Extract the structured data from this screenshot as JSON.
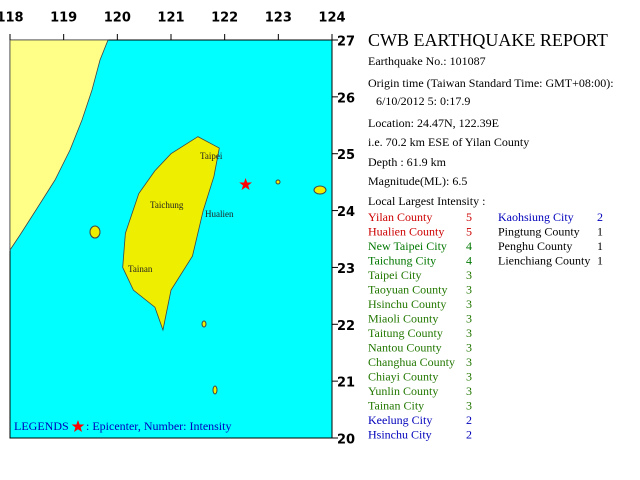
{
  "map": {
    "lon_ticks": [
      118,
      119,
      120,
      121,
      122,
      123,
      124
    ],
    "lat_ticks": [
      27,
      26,
      25,
      24,
      23,
      22,
      21,
      20
    ],
    "cities": [
      "Taipei",
      "Taichung",
      "Hualien",
      "Tainan"
    ],
    "legend": {
      "title": "LEGENDS",
      "text": ": Epicenter, Number: Intensity"
    }
  },
  "report": {
    "title": "CWB EARTHQUAKE REPORT",
    "lines": [
      "Earthquake No.: 101087",
      "Origin time (Taiwan Standard Time: GMT+08:00):",
      "6/10/2012  5: 0:17.9",
      "Location: 24.47N, 122.39E",
      "i.e. 70.2 km ESE of Yilan County",
      "Depth :  61.9 km",
      "Magnitude(ML): 6.5",
      "Local Largest Intensity :"
    ],
    "intensity_colors": {
      "5": "#cc0000",
      "4": "#007700",
      "3": "#227700",
      "2": "#0000bb",
      "1": "#000000"
    },
    "intensities": [
      [
        "Yilan County",
        5
      ],
      [
        "Hualien County",
        5
      ],
      [
        "New Taipei City",
        4
      ],
      [
        "Taichung City",
        4
      ],
      [
        "Taipei City",
        3
      ],
      [
        "Taoyuan County",
        3
      ],
      [
        "Hsinchu County",
        3
      ],
      [
        "Miaoli County",
        3
      ],
      [
        "Taitung County",
        3
      ],
      [
        "Nantou County",
        3
      ],
      [
        "Changhua County",
        3
      ],
      [
        "Chiayi County",
        3
      ],
      [
        "Yunlin County",
        3
      ],
      [
        "Tainan City",
        3
      ],
      [
        "Keelung City",
        2
      ],
      [
        "Hsinchu City",
        2
      ],
      [
        "Kaohsiung City",
        2
      ],
      [
        "Pingtung County",
        1
      ],
      [
        "Penghu County",
        1
      ],
      [
        "Lienchiang County",
        1
      ]
    ]
  }
}
